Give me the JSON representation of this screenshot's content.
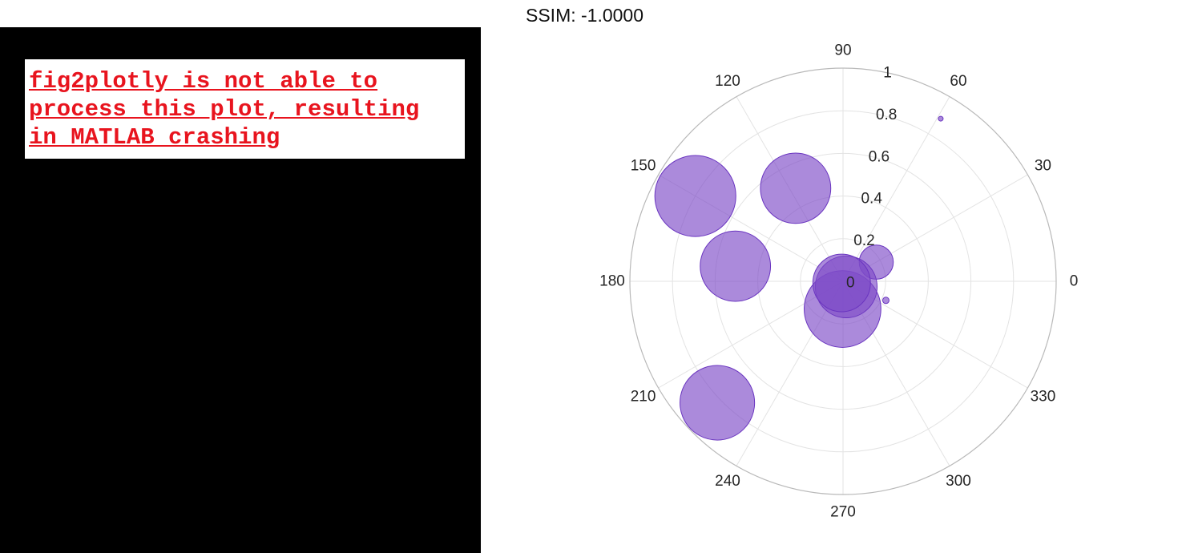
{
  "error_panel": {
    "lines": [
      "fig2plotly is not able to",
      "process this plot, resulting",
      "in MATLAB crashing"
    ]
  },
  "ssim_title": "SSIM: -1.0000",
  "chart_data": {
    "type": "scatter",
    "coordinate_system": "polar",
    "rlim": [
      0,
      1
    ],
    "r_ticks": [
      "0",
      "0.2",
      "0.4",
      "0.6",
      "0.8",
      "1"
    ],
    "theta_ticks": [
      "0",
      "30",
      "60",
      "90",
      "120",
      "150",
      "180",
      "210",
      "240",
      "270",
      "300",
      "330"
    ],
    "grid": true,
    "marker_color": "#7e4cc7",
    "marker_edge_color": "#6a35c0",
    "marker_alpha": 0.65,
    "points": [
      {
        "theta": 59,
        "r": 0.89,
        "size": 0.02
      },
      {
        "theta": 117,
        "r": 0.49,
        "size": 0.33
      },
      {
        "theta": 150,
        "r": 0.8,
        "size": 0.38
      },
      {
        "theta": 172,
        "r": 0.51,
        "size": 0.33
      },
      {
        "theta": 224,
        "r": 0.82,
        "size": 0.35
      },
      {
        "theta": 30,
        "r": 0.18,
        "size": 0.16
      },
      {
        "theta": 269,
        "r": 0.13,
        "size": 0.36
      },
      {
        "theta": 336,
        "r": 0.22,
        "size": 0.03
      },
      {
        "theta": 300,
        "r": 0.03,
        "size": 0.29
      },
      {
        "theta": 230,
        "r": 0.01,
        "size": 0.27
      }
    ]
  }
}
